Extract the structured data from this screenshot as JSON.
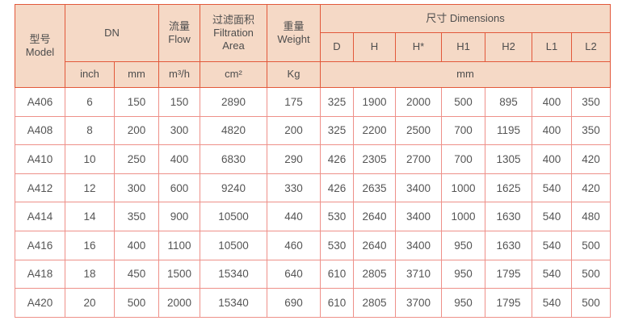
{
  "table": {
    "header": {
      "model": "型号\nModel",
      "dn": "DN",
      "flow": "流量\nFlow",
      "filtration": "过滤面积\nFiltration\nArea",
      "weight": "重量\nWeight",
      "dimensions": "尺寸 Dimensions",
      "dim_cols": [
        "D",
        "H",
        "H*",
        "H1",
        "H2",
        "L1",
        "L2"
      ],
      "units": {
        "inch": "inch",
        "mm": "mm",
        "flow": "m³/h",
        "area": "cm²",
        "weight": "Kg",
        "dim_mm": "mm"
      }
    },
    "rows": [
      [
        "A406",
        "6",
        "150",
        "150",
        "2890",
        "175",
        "325",
        "1900",
        "2000",
        "500",
        "895",
        "400",
        "350"
      ],
      [
        "A408",
        "8",
        "200",
        "300",
        "4820",
        "200",
        "325",
        "2200",
        "2500",
        "700",
        "1195",
        "400",
        "350"
      ],
      [
        "A410",
        "10",
        "250",
        "400",
        "6830",
        "290",
        "426",
        "2305",
        "2700",
        "700",
        "1305",
        "400",
        "420"
      ],
      [
        "A412",
        "12",
        "300",
        "600",
        "9240",
        "330",
        "426",
        "2635",
        "3400",
        "1000",
        "1625",
        "540",
        "420"
      ],
      [
        "A414",
        "14",
        "350",
        "900",
        "10500",
        "440",
        "530",
        "2640",
        "3400",
        "1000",
        "1630",
        "540",
        "480"
      ],
      [
        "A416",
        "16",
        "400",
        "1100",
        "10500",
        "460",
        "530",
        "2640",
        "3400",
        "950",
        "1630",
        "540",
        "500"
      ],
      [
        "A418",
        "18",
        "450",
        "1500",
        "15340",
        "640",
        "610",
        "2805",
        "3710",
        "950",
        "1795",
        "540",
        "500"
      ],
      [
        "A420",
        "20",
        "500",
        "2000",
        "15340",
        "690",
        "610",
        "2805",
        "3700",
        "950",
        "1795",
        "540",
        "500"
      ]
    ],
    "colors": {
      "header_bg": "#f5d9c6",
      "header_border": "#e2583a",
      "data_border": "#ee9089",
      "text": "#4f4f4f"
    }
  }
}
